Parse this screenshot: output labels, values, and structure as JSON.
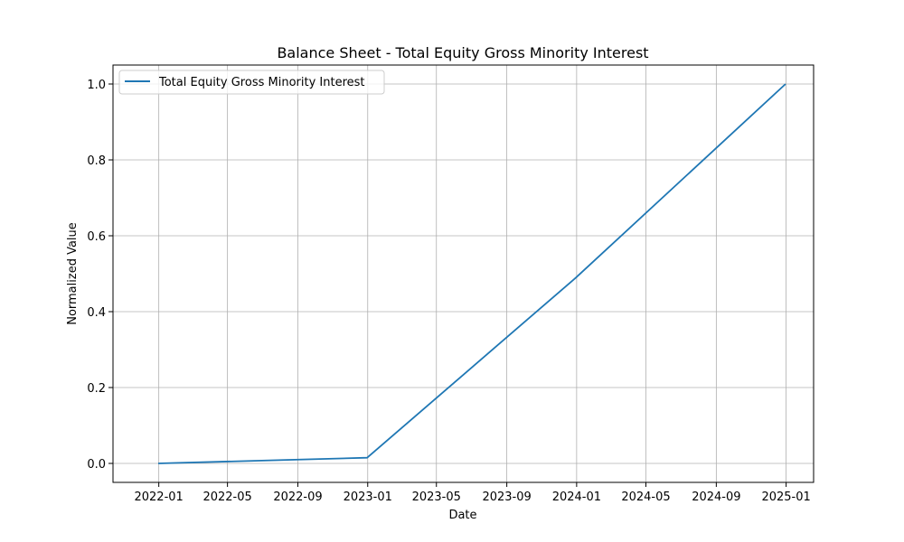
{
  "chart_data": {
    "type": "line",
    "title": "Balance Sheet - Total Equity Gross Minority Interest",
    "xlabel": "Date",
    "ylabel": "Normalized Value",
    "x_type": "date",
    "x": [
      "2021-12-31",
      "2022-12-31",
      "2023-12-31",
      "2024-12-31"
    ],
    "series": [
      {
        "name": "Total Equity Gross Minority Interest",
        "values": [
          0.0,
          0.015,
          0.49,
          1.0
        ]
      }
    ],
    "x_ticks": [
      "2022-01",
      "2022-05",
      "2022-09",
      "2023-01",
      "2023-05",
      "2023-09",
      "2024-01",
      "2024-05",
      "2024-09",
      "2025-01"
    ],
    "x_tick_labels": [
      "2022-01",
      "2022-05",
      "2022-09",
      "2023-01",
      "2023-05",
      "2023-09",
      "2024-01",
      "2024-05",
      "2024-09",
      "2025-01"
    ],
    "y_ticks": [
      0.0,
      0.2,
      0.4,
      0.6,
      0.8,
      1.0
    ],
    "y_tick_labels": [
      "0.0",
      "0.2",
      "0.4",
      "0.6",
      "0.8",
      "1.0"
    ],
    "xlim": [
      "2021-10-13",
      "2025-02-18"
    ],
    "ylim": [
      -0.05,
      1.05
    ],
    "grid": true,
    "legend_position": "upper left",
    "colors": {
      "line": "#1f77b4",
      "grid": "#b0b0b0",
      "axes": "#000000"
    }
  }
}
